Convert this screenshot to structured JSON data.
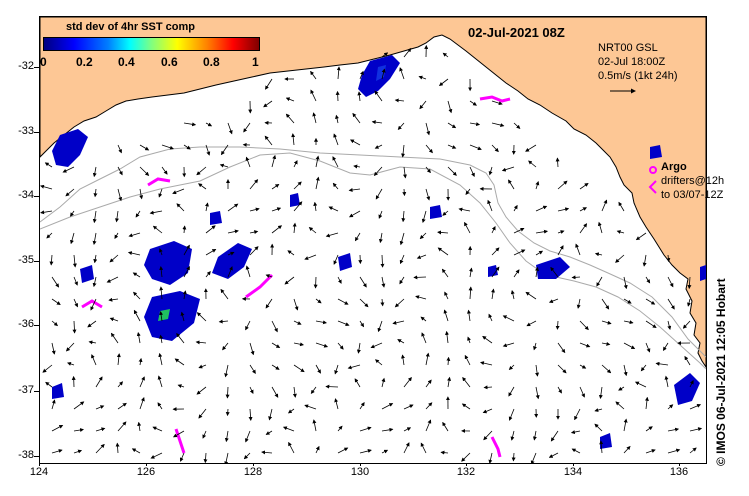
{
  "colorbar": {
    "title": "std dev of 4hr SST comp",
    "tick_labels": [
      "0",
      "0.2",
      "0.4",
      "0.6",
      "0.8",
      "1"
    ],
    "colors": [
      "#00007f",
      "#0000ff",
      "#0080ff",
      "#00ffff",
      "#80ff80",
      "#ffff00",
      "#ff8000",
      "#ff0000",
      "#7f0000"
    ]
  },
  "date_title": "02-Jul-2021 08Z",
  "current_info": {
    "line1": "NRT00 GSL",
    "line2": "02-Jul 18:00Z",
    "line3": "0.5m/s (1kt 24h)"
  },
  "legend": {
    "argo": "Argo",
    "drifters_line1": "drifters@12h",
    "drifters_line2": "to 03/07-12Z"
  },
  "credit": "© IMOS 06-Jul-2021 12:05 Hobart",
  "axes": {
    "y_ticks": [
      "-32",
      "-33",
      "-34",
      "-35",
      "-36",
      "-37",
      "-38"
    ],
    "x_ticks": [
      "124",
      "126",
      "128",
      "130",
      "132",
      "134",
      "136"
    ]
  },
  "colors": {
    "land": "#fdc795",
    "argo": "#ff00ff",
    "drifter": "#ff00ff",
    "bathymetry": "#aaaaaa",
    "arrow": "#000000"
  }
}
